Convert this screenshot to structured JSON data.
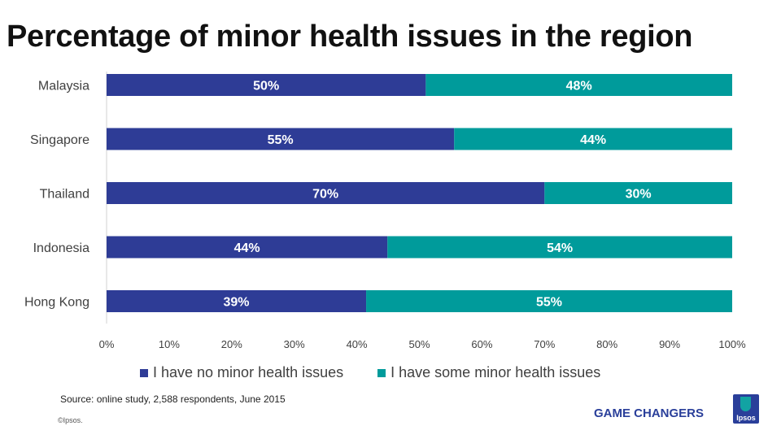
{
  "title": "Percentage of minor health issues in the region",
  "chart_data": {
    "type": "bar",
    "orientation": "horizontal",
    "stacked": true,
    "categories": [
      "Malaysia",
      "Singapore",
      "Thailand",
      "Indonesia",
      "Hong Kong"
    ],
    "series": [
      {
        "name": "I have no minor health issues",
        "color": "#2e3c96",
        "values": [
          50,
          55,
          70,
          44,
          39
        ],
        "labels": [
          "50%",
          "55%",
          "70%",
          "44%",
          "39%"
        ]
      },
      {
        "name": "I have some minor health issues",
        "color": "#009b9b",
        "values": [
          48,
          44,
          30,
          54,
          55
        ],
        "labels": [
          "48%",
          "44%",
          "30%",
          "54%",
          "55%"
        ]
      }
    ],
    "xlim": [
      0,
      100
    ],
    "xticks": [
      "0%",
      "10%",
      "20%",
      "30%",
      "40%",
      "50%",
      "60%",
      "70%",
      "80%",
      "90%",
      "100%"
    ],
    "legend_position": "bottom"
  },
  "footer": {
    "source": "Source: online study, 2,588 respondents, June 2015",
    "copyright": "©Ipsos.",
    "brand": "GAME CHANGERS",
    "logo_text": "Ipsos"
  }
}
